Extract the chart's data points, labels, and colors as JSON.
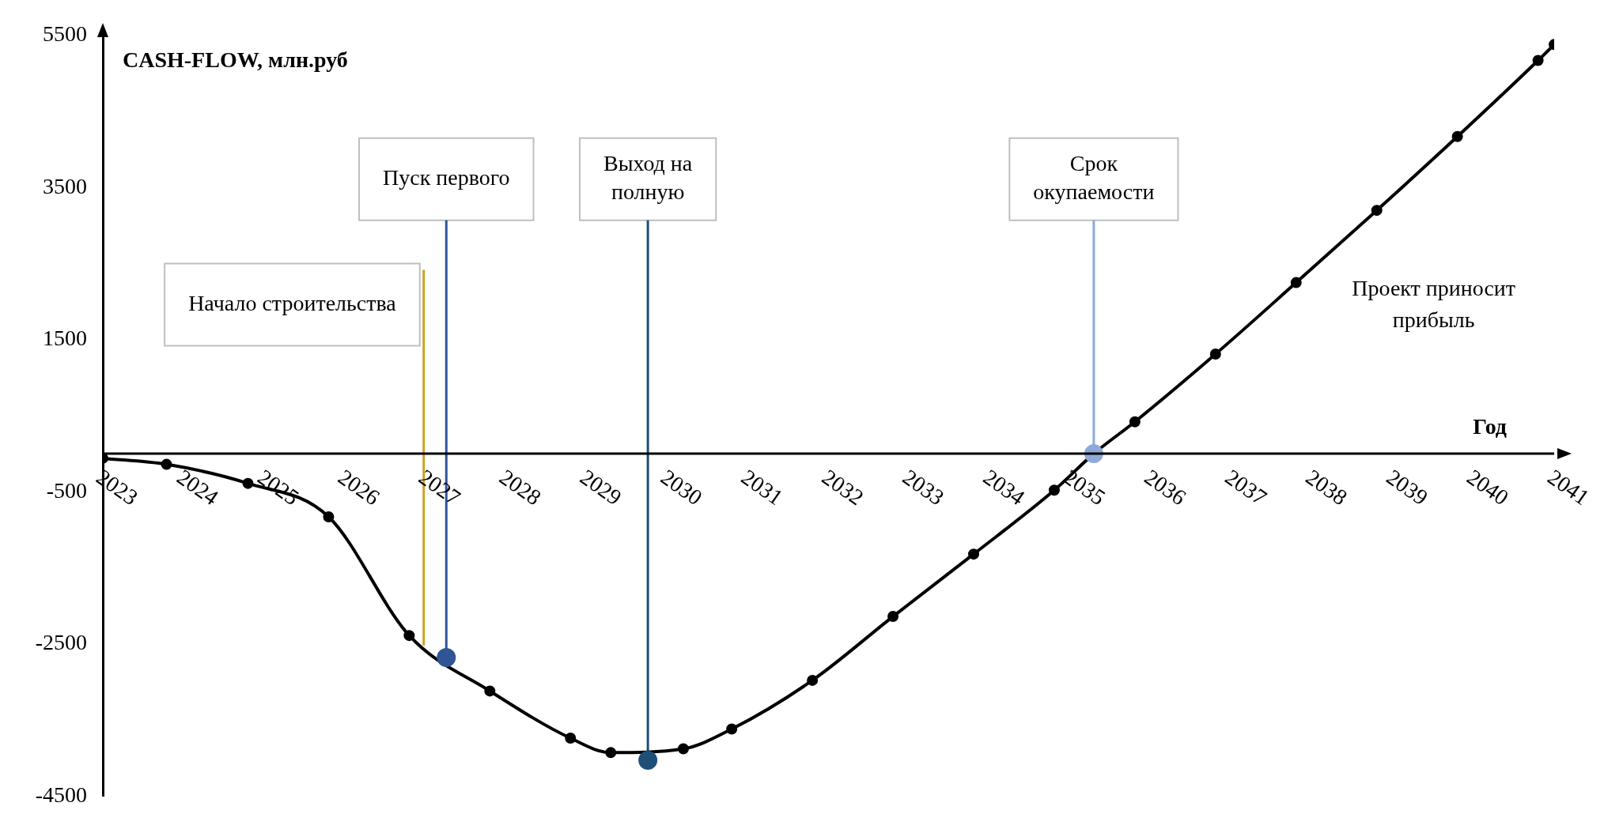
{
  "chart_data": {
    "type": "line",
    "ylabel": "CASH-FLOW, млн.руб",
    "xlabel": "Год",
    "x": [
      2023,
      2023.79,
      2024.8,
      2025.8,
      2026.8,
      2027.8,
      2028.8,
      2029.3,
      2030.2,
      2030.8,
      2031.8,
      2032.8,
      2033.8,
      2034.8,
      2035.29,
      2035.8,
      2036.8,
      2037.8,
      2038.8,
      2039.8,
      2040.8,
      2041
    ],
    "series": [
      {
        "color": "#000000",
        "values": [
          -60,
          -140,
          -390,
          -830,
          -2390,
          -3120,
          -3740,
          -3930,
          -3880,
          -3620,
          -2980,
          -2140,
          -1320,
          -480,
          0,
          420,
          1310,
          2250,
          3200,
          4170,
          5170,
          5380
        ]
      },
      {
        "type": "scatter",
        "x": [
          2027.26,
          2029.76,
          2035.29
        ],
        "colors": [
          "#2f5597",
          "#1f4e79",
          "#8eaadb"
        ],
        "values": [
          -2680,
          -4030,
          0
        ]
      }
    ],
    "xlim": [
      2023,
      2041
    ],
    "xticks": [
      2023,
      2024,
      2025,
      2026,
      2027,
      2028,
      2029,
      2030,
      2031,
      2032,
      2033,
      2034,
      2035,
      2036,
      2037,
      2038,
      2039,
      2040,
      2041
    ],
    "ylim": [
      -4500,
      5500
    ],
    "yticks": [
      -4500,
      -2500,
      -500,
      1500,
      3500,
      5500
    ],
    "ref_lines": [
      {
        "axis": "x",
        "value": 2026.98,
        "label": "Начало строительства",
        "color": "#c9a227"
      },
      {
        "axis": "x",
        "value": 2027.26,
        "label": "Пуск первого",
        "color": "#2f5597"
      },
      {
        "axis": "x",
        "value": 2029.76,
        "label": "Выход на полную",
        "color": "#1f4e79"
      },
      {
        "axis": "x",
        "value": 2035.29,
        "label": "Срок окупаемости",
        "color": "#8eaadb"
      }
    ],
    "annotations": [
      "Проект приносит прибыль"
    ],
    "marker": "circle",
    "line_style": "solid",
    "grid": false,
    "legend": false
  }
}
